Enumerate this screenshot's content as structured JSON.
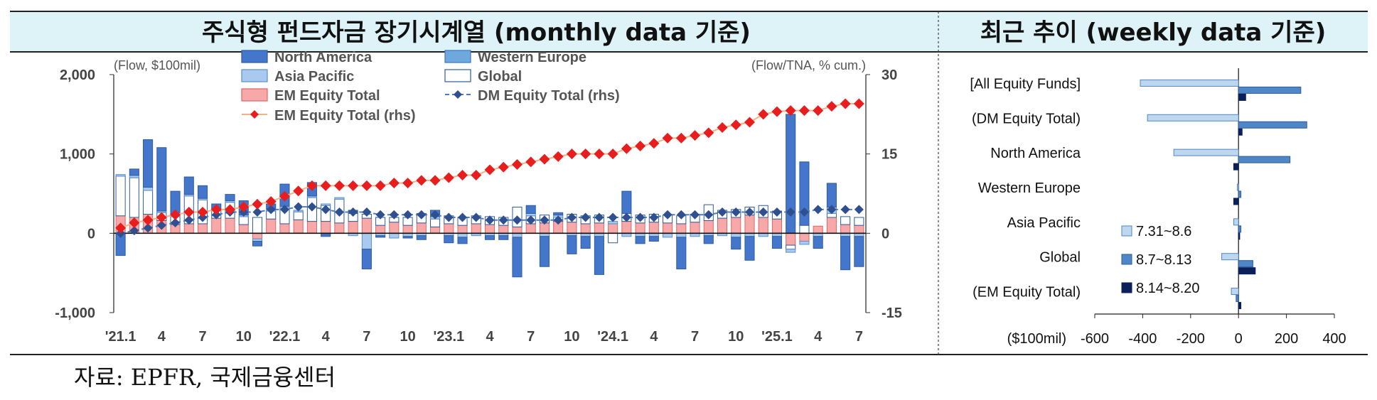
{
  "header": {
    "left_title_ko": "주식형 펀드자금 장기시계열",
    "left_title_en": "(monthly data 기준)",
    "right_title_ko": "최근 추이",
    "right_title_en": "(weekly data 기준)"
  },
  "source": "자료: EPFR, 국제금융센터",
  "colors": {
    "north_america": "#4477CC",
    "western_europe": "#6FA8DC",
    "asia_pacific": "#A9C9EE",
    "global": "#FFFFFF",
    "global_border": "#2E5C9E",
    "em_equity": "#F7A9A9",
    "em_line": "#E81E1E",
    "dm_line": "#2F4F8F",
    "header_bg": "#DDF3F8",
    "week1": "#BDD7EE",
    "week2": "#4F86C6",
    "week3": "#0B1F5B"
  },
  "chart_data": [
    {
      "type": "bar",
      "subtype": "stacked bar with dual-axis lines",
      "left_unit": "(Flow, $100mil)",
      "right_unit": "(Flow/TNA, % cum.)",
      "ylim": [
        -1000,
        2000
      ],
      "y_ticks": [
        "2,000",
        "1,000",
        "0",
        "-1,000"
      ],
      "y2lim": [
        -15,
        30
      ],
      "y2_ticks": [
        "30",
        "15",
        "0",
        "-15"
      ],
      "x_tick_labels": [
        "'21.1",
        "4",
        "7",
        "10",
        "'22.1",
        "4",
        "7",
        "10",
        "'23.1",
        "4",
        "7",
        "10",
        "'24.1",
        "4",
        "7",
        "10",
        "'25.1",
        "4",
        "7"
      ],
      "months": 55,
      "legend": [
        {
          "label": "North America",
          "kind": "bar",
          "series": "north_america"
        },
        {
          "label": "Western Europe",
          "kind": "bar",
          "series": "western_europe"
        },
        {
          "label": "Asia Pacific",
          "kind": "bar",
          "series": "asia_pacific"
        },
        {
          "label": "Global",
          "kind": "bar",
          "series": "global"
        },
        {
          "label": "EM Equity Total",
          "kind": "bar",
          "series": "em_equity"
        },
        {
          "label": "DM Equity Total (rhs)",
          "kind": "line",
          "series": "dm_line"
        },
        {
          "label": "EM Equity Total (rhs)",
          "kind": "line",
          "series": "em_line"
        }
      ],
      "series": {
        "north_america": [
          -280,
          80,
          600,
          800,
          300,
          220,
          160,
          60,
          80,
          180,
          -60,
          60,
          280,
          0,
          170,
          -40,
          0,
          40,
          -250,
          -20,
          0,
          -20,
          -50,
          80,
          -90,
          -80,
          0,
          -50,
          -50,
          -500,
          100,
          -380,
          30,
          -230,
          -150,
          -480,
          0,
          280,
          -90,
          -60,
          0,
          -400,
          0,
          -100,
          0,
          -150,
          -300,
          0,
          -150,
          1500,
          800,
          -150,
          300,
          -420,
          -380
        ],
        "western_europe": [
          0,
          0,
          0,
          0,
          0,
          0,
          0,
          0,
          0,
          0,
          0,
          0,
          0,
          0,
          0,
          0,
          0,
          0,
          0,
          0,
          0,
          0,
          0,
          0,
          0,
          0,
          0,
          0,
          0,
          0,
          0,
          0,
          0,
          0,
          0,
          0,
          0,
          0,
          0,
          0,
          0,
          0,
          0,
          0,
          0,
          0,
          0,
          0,
          0,
          0,
          0,
          0,
          0,
          0,
          0
        ],
        "asia_pacific": [
          20,
          30,
          40,
          20,
          20,
          20,
          20,
          20,
          20,
          20,
          -30,
          30,
          20,
          20,
          20,
          20,
          20,
          -30,
          -200,
          -30,
          -60,
          -40,
          -30,
          30,
          -30,
          -50,
          -30,
          -30,
          -30,
          -50,
          30,
          -40,
          30,
          -30,
          -40,
          -40,
          30,
          -40,
          -40,
          -40,
          -50,
          -50,
          -40,
          -30,
          -30,
          -50,
          -40,
          -40,
          -40,
          -40,
          -40,
          -40,
          80,
          -40,
          -40
        ],
        "global": [
          500,
          500,
          300,
          100,
          100,
          350,
          300,
          100,
          200,
          100,
          200,
          100,
          200,
          100,
          300,
          200,
          300,
          100,
          50,
          100,
          60,
          100,
          120,
          100,
          100,
          100,
          100,
          100,
          100,
          250,
          100,
          100,
          50,
          100,
          100,
          100,
          -120,
          100,
          100,
          100,
          100,
          100,
          100,
          200,
          100,
          100,
          100,
          150,
          100,
          -50,
          100,
          0,
          50,
          100,
          100
        ],
        "em_equity": [
          220,
          200,
          240,
          160,
          110,
          120,
          120,
          190,
          190,
          110,
          -70,
          180,
          120,
          170,
          150,
          150,
          130,
          150,
          190,
          100,
          140,
          100,
          130,
          80,
          120,
          100,
          120,
          110,
          100,
          80,
          120,
          130,
          150,
          140,
          120,
          130,
          120,
          150,
          130,
          140,
          130,
          120,
          140,
          160,
          190,
          200,
          230,
          200,
          180,
          -150,
          -100,
          90,
          200,
          110,
          100
        ],
        "em_line": [
          1,
          2,
          2.5,
          3,
          3.5,
          4,
          4,
          4.5,
          4.5,
          5,
          5.5,
          6,
          7,
          8,
          9,
          9,
          9,
          9,
          9,
          9,
          9.5,
          9.5,
          10,
          10,
          10.5,
          11,
          11,
          12,
          12.5,
          13,
          13.5,
          14,
          14.5,
          15,
          15,
          15,
          15,
          16,
          16.5,
          17,
          18,
          18,
          18.5,
          19,
          20,
          20.5,
          21,
          22.5,
          23,
          23.2,
          23.2,
          23.2,
          24,
          24.5,
          24.5
        ],
        "dm_line": [
          0,
          0.5,
          1,
          1.5,
          2,
          2.5,
          3,
          3.5,
          4,
          4,
          4,
          4.5,
          4.5,
          5,
          5,
          4.5,
          4,
          4,
          4,
          3.5,
          3.5,
          3.5,
          3.5,
          3.5,
          3,
          3,
          3,
          2.5,
          2.5,
          2.5,
          2.5,
          2.5,
          2.5,
          3,
          3,
          3,
          3,
          3,
          3,
          3,
          3.5,
          3.5,
          3.5,
          3.5,
          4,
          4,
          4,
          4,
          4,
          4,
          4,
          4.5,
          4.5,
          4.5,
          4.5
        ]
      }
    },
    {
      "type": "bar",
      "subtype": "horizontal grouped bar",
      "unit": "($100mil)",
      "xlim": [
        -600,
        400
      ],
      "x_ticks": [
        "-600",
        "-400",
        "-200",
        "0",
        "200",
        "400"
      ],
      "categories": [
        "[All Equity Funds]",
        "(DM Equity Total)",
        "North America",
        "Western Europe",
        "Asia Pacific",
        "Global",
        "(EM Equity Total)"
      ],
      "series": [
        {
          "name": "7.31~8.6",
          "values": [
            -410,
            -380,
            -270,
            -5,
            -20,
            -70,
            -30
          ]
        },
        {
          "name": "8.7~8.13",
          "values": [
            260,
            285,
            215,
            10,
            10,
            60,
            -10
          ]
        },
        {
          "name": "8.14~8.20",
          "values": [
            30,
            15,
            -20,
            -20,
            5,
            70,
            10
          ]
        }
      ]
    }
  ]
}
